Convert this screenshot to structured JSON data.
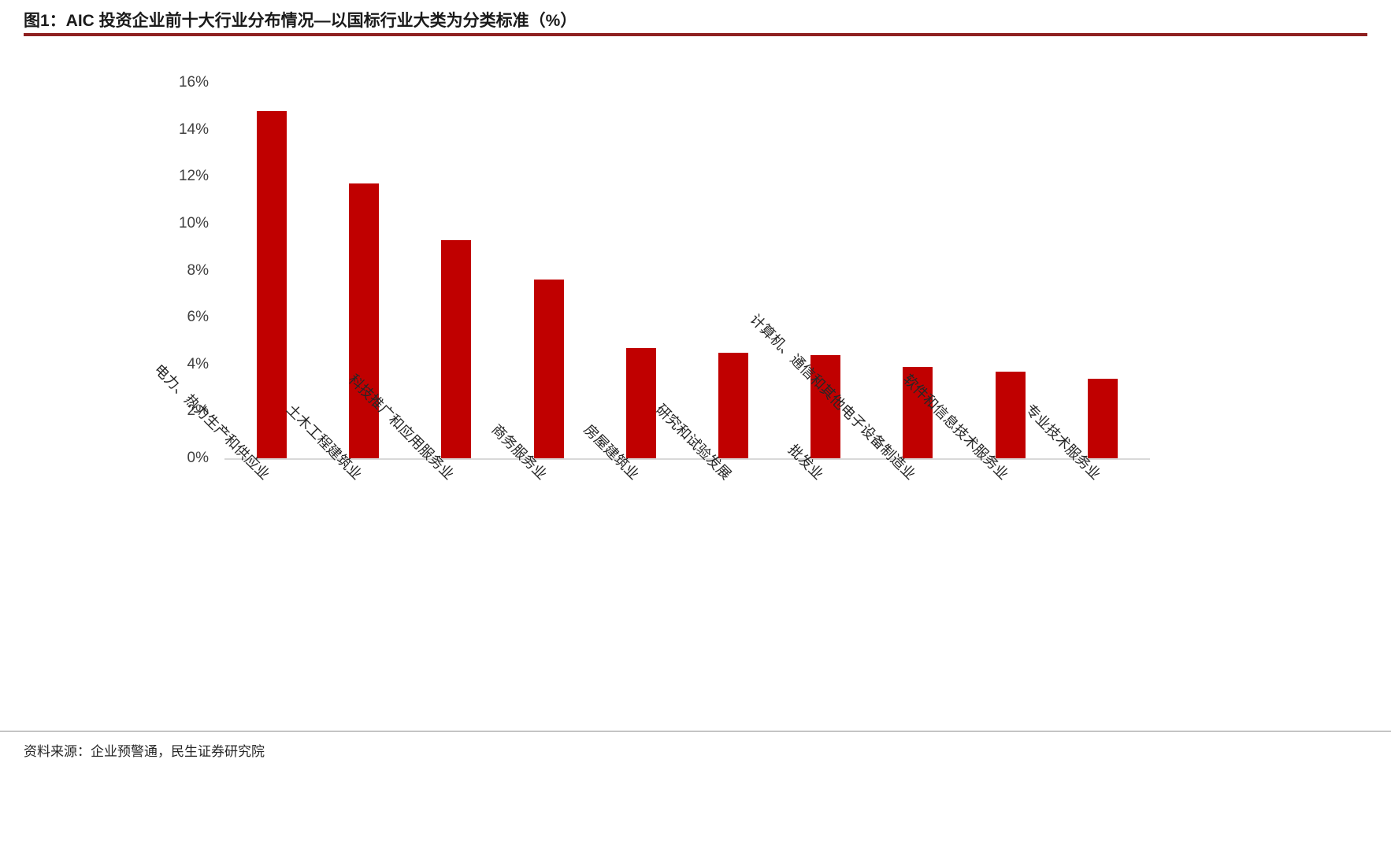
{
  "header": {
    "title": "图1：AIC 投资企业前十大行业分布情况—以国标行业大类为分类标准（%）"
  },
  "footer": {
    "source": "资料来源：企业预警通，民生证券研究院"
  },
  "colors": {
    "bar": "#c00000",
    "title_underline": "#8e2020",
    "axis_line": "#d9d9d9"
  },
  "chart_data": {
    "type": "bar",
    "title": "AIC 投资企业前十大行业分布情况—以国标行业大类为分类标准（%）",
    "categories": [
      "电力、热力生产和供应业",
      "土木工程建筑业",
      "科技推广和应用服务业",
      "商务服务业",
      "房屋建筑业",
      "研究和试验发展",
      "批发业",
      "计算机、通信和其他电子设备制造业",
      "软件和信息技术服务业",
      "专业技术服务业"
    ],
    "values": [
      14.8,
      11.7,
      9.3,
      7.6,
      4.7,
      4.5,
      4.4,
      3.9,
      3.7,
      3.4
    ],
    "xlabel": "",
    "ylabel": "",
    "ylim": [
      0,
      16
    ],
    "ytick_step": 2,
    "ytick_labels": [
      "0%",
      "2%",
      "4%",
      "6%",
      "8%",
      "10%",
      "12%",
      "14%",
      "16%"
    ],
    "grid": false,
    "legend": "none",
    "bar_color": "#c00000"
  }
}
